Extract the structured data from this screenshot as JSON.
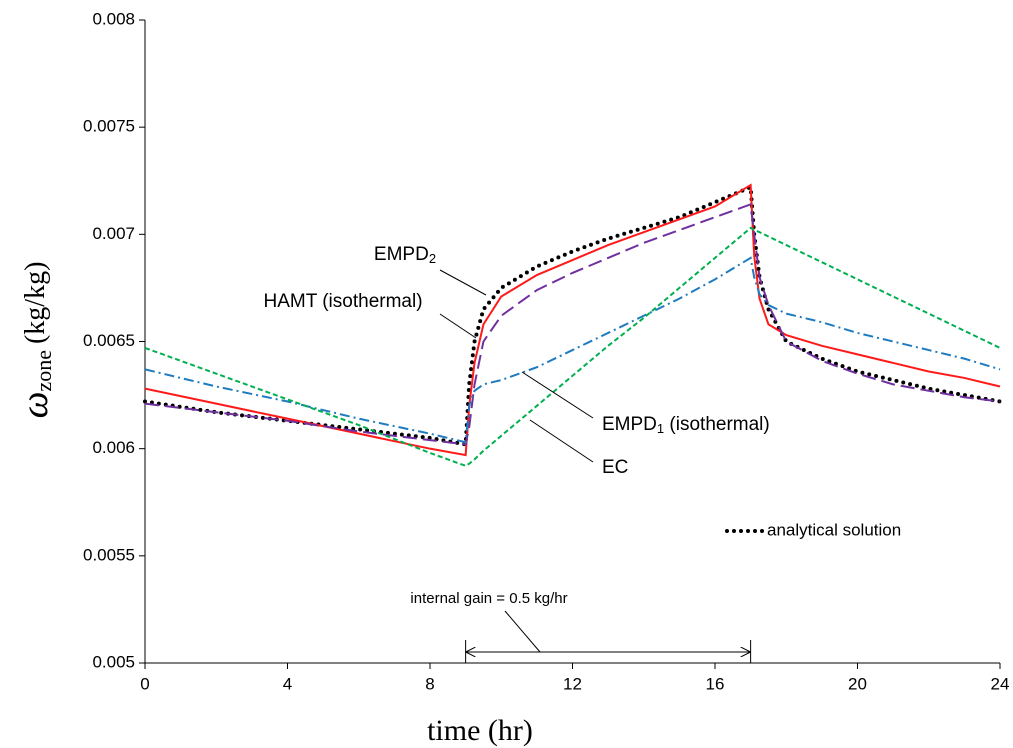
{
  "chart_data": {
    "type": "line",
    "x_label": "time (hr)",
    "y_label": {
      "symbol": "ω",
      "subscript": "zone",
      "unit": "(kg/kg)"
    },
    "xlim": [
      0,
      24
    ],
    "xticks": [
      0,
      4,
      8,
      12,
      16,
      20,
      24
    ],
    "ylim": [
      0.005,
      0.008
    ],
    "yticks": [
      0.005,
      0.0055,
      0.006,
      0.0065,
      0.007,
      0.0075,
      0.008
    ],
    "legend": "lower right",
    "x": [
      0,
      2,
      4,
      6,
      8,
      9,
      9.1,
      9.25,
      9.5,
      10,
      11,
      12,
      13,
      14,
      15,
      16,
      17,
      17.1,
      17.25,
      17.5,
      18,
      19,
      20,
      21,
      22,
      23,
      24
    ],
    "series": [
      {
        "name": "analytical solution",
        "color": "#000000",
        "style": "dotted",
        "legend": true,
        "values": [
          0.00622,
          0.00617,
          0.00613,
          0.00609,
          0.00605,
          0.00602,
          0.0063,
          0.0065,
          0.00665,
          0.00675,
          0.00685,
          0.00692,
          0.00698,
          0.00703,
          0.00708,
          0.00715,
          0.00722,
          0.007,
          0.0068,
          0.00665,
          0.0065,
          0.00642,
          0.00636,
          0.00632,
          0.00628,
          0.00625,
          0.00622
        ]
      },
      {
        "name": "EMPD",
        "name_subscript": "2",
        "color": "#ff1a1a",
        "style": "solid",
        "values": [
          0.00628,
          0.00621,
          0.00614,
          0.00607,
          0.006,
          0.00597,
          0.0062,
          0.0064,
          0.00658,
          0.00671,
          0.00681,
          0.00688,
          0.00695,
          0.00701,
          0.00707,
          0.00713,
          0.00723,
          0.0069,
          0.0067,
          0.00658,
          0.00653,
          0.00648,
          0.00644,
          0.0064,
          0.00636,
          0.00633,
          0.00629
        ]
      },
      {
        "name": "HAMT (isothermal)",
        "color": "#7030a0",
        "style": "dashed",
        "values": [
          0.00621,
          0.00617,
          0.00613,
          0.00608,
          0.00604,
          0.00602,
          0.0061,
          0.0063,
          0.0065,
          0.00662,
          0.00674,
          0.00682,
          0.00689,
          0.00696,
          0.00702,
          0.00708,
          0.00714,
          0.007,
          0.0068,
          0.00667,
          0.0065,
          0.00641,
          0.00635,
          0.0063,
          0.00627,
          0.00624,
          0.00622
        ]
      },
      {
        "name": "EMPD",
        "name_subscript": "1",
        "name_suffix": " (isothermal)",
        "color": "#1f7bbf",
        "style": "dashdot",
        "values": [
          0.00637,
          0.00629,
          0.00622,
          0.00614,
          0.00607,
          0.00603,
          0.0062,
          0.00627,
          0.0063,
          0.00632,
          0.00638,
          0.00646,
          0.00654,
          0.00662,
          0.0067,
          0.00679,
          0.00689,
          0.0068,
          0.00672,
          0.00667,
          0.00663,
          0.00659,
          0.00654,
          0.0065,
          0.00646,
          0.00642,
          0.00637
        ]
      },
      {
        "name": "EC",
        "color": "#00b050",
        "style": "shortdash",
        "values": [
          0.00647,
          0.00635,
          0.00623,
          0.00611,
          0.00598,
          0.00592,
          0.00593,
          0.00595,
          0.00599,
          0.00606,
          0.0062,
          0.00634,
          0.00648,
          0.00661,
          0.00675,
          0.00689,
          0.00703,
          0.00702,
          0.00701,
          0.00699,
          0.00695,
          0.00687,
          0.00679,
          0.00671,
          0.00663,
          0.00655,
          0.00647
        ]
      }
    ],
    "span_annotation": {
      "text": "internal gain = 0.5 kg/hr",
      "from": 9,
      "to": 17
    }
  }
}
